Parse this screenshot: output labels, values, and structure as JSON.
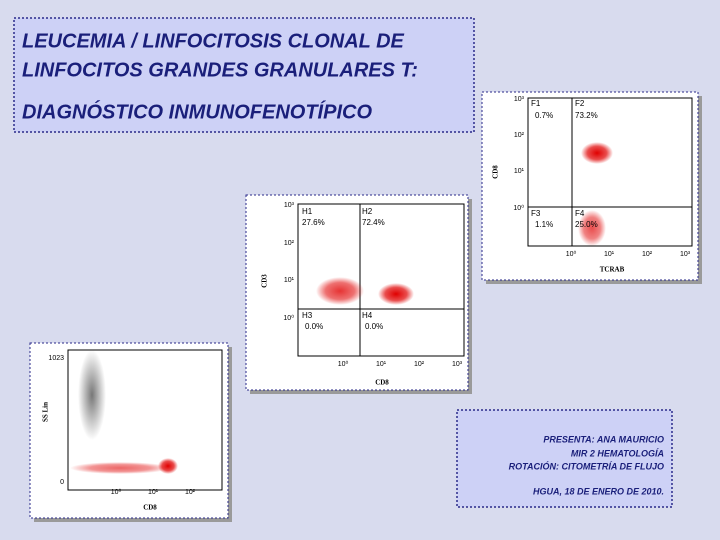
{
  "title": {
    "lines": [
      "LEUCEMIA / LINFOCITOSIS CLONAL DE",
      "LINFOCITOS GRANDES GRANULARES T:"
    ],
    "subtitle": "DIAGNÓSTICO INMUNOFENOTÍPICO"
  },
  "plots": [
    {
      "y_label": "CD8",
      "x_label": "TCRAB",
      "y_ticks": [
        "10³",
        "10²",
        "10¹",
        "10⁰"
      ],
      "x_ticks": [
        "10⁰",
        "10¹",
        "10²",
        "10³"
      ],
      "quadrants": [
        {
          "name": "F1",
          "percent": "0.7%"
        },
        {
          "name": "F2",
          "percent": "73.2%"
        },
        {
          "name": "F3",
          "percent": "1.1%"
        },
        {
          "name": "F4",
          "percent": "25.0%"
        }
      ]
    },
    {
      "y_label": "CD3",
      "x_label": "CD8",
      "y_ticks": [
        "10³",
        "10²",
        "10¹",
        "10⁰"
      ],
      "x_ticks": [
        "10⁰",
        "10¹",
        "10²",
        "10³"
      ],
      "quadrants": [
        {
          "name": "H1",
          "percent": "27.6%"
        },
        {
          "name": "H2",
          "percent": "72.4%"
        },
        {
          "name": "H3",
          "percent": "0.0%"
        },
        {
          "name": "H4",
          "percent": "0.0%"
        }
      ]
    },
    {
      "y_label": "SS Lin",
      "x_label": "CD8",
      "y_ticks": [
        "1023",
        "0"
      ],
      "x_ticks": [
        "10⁰",
        "10¹",
        "10²"
      ]
    }
  ],
  "presenter": {
    "lines": [
      "PRESENTA: ANA MAURICIO",
      "MIR 2 HEMATOLOGÍA",
      "ROTACIÓN: CITOMETRÍA DE FLUJO"
    ],
    "date": "HGUA, 18 DE ENERO DE 2010."
  }
}
